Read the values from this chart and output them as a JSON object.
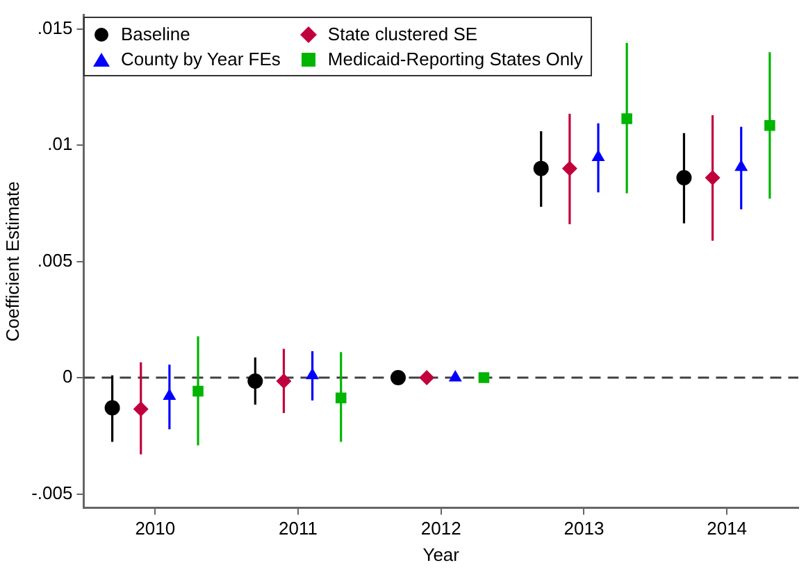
{
  "chart_data": {
    "type": "scatter",
    "xlabel": "Year",
    "ylabel": "Coefficient Estimate",
    "xlim": [
      2009.5,
      2014.5
    ],
    "xticks": [
      2010,
      2011,
      2012,
      2013,
      2014
    ],
    "ylim": [
      -0.0056,
      0.0156
    ],
    "yticks": [
      {
        "value": -0.005,
        "label": "-.005"
      },
      0,
      {
        "value": 0.005,
        "label": ".005"
      },
      {
        "value": 0.01,
        "label": ".01"
      },
      {
        "value": 0.015,
        "label": ".015"
      }
    ],
    "grid": false,
    "legend": "top left",
    "ref_lines": [
      {
        "axis": "y",
        "value": 0,
        "color": "#404040",
        "line_style": "dashed"
      }
    ],
    "series": [
      {
        "name": "Baseline",
        "color": "#000000",
        "marker": "circle",
        "x": [
          2009.7,
          2010.7,
          2011.7,
          2012.7,
          2013.7
        ],
        "values": [
          -0.0013,
          -0.00015,
          0,
          0.009,
          0.0086
        ],
        "errors": [
          [
            -0.00276,
            0.0001
          ],
          [
            -0.00116,
            0.00087
          ],
          null,
          [
            0.00735,
            0.0106
          ],
          [
            0.00664,
            0.01052
          ]
        ]
      },
      {
        "name": "State clustered SE",
        "color": "#c0003c",
        "marker": "diamond",
        "x": [
          2009.9,
          2010.9,
          2011.9,
          2012.9,
          2013.9
        ],
        "values": [
          -0.00135,
          -0.00015,
          0,
          0.009,
          0.0086
        ],
        "errors": [
          [
            -0.0033,
            0.00066
          ],
          [
            -0.00152,
            0.00124
          ],
          null,
          [
            0.0066,
            0.01135
          ],
          [
            0.00589,
            0.01129
          ]
        ]
      },
      {
        "name": "County by Year FEs",
        "color": "#0000ff",
        "marker": "triangle",
        "x": [
          2010.1,
          2011.1,
          2012.1,
          2013.1,
          2014.1
        ],
        "values": [
          -0.00079,
          0.0001,
          0,
          0.00948,
          0.00906
        ],
        "errors": [
          [
            -0.00222,
            0.00056
          ],
          [
            -0.00098,
            0.00114
          ],
          null,
          [
            0.00797,
            0.01094
          ],
          [
            0.00724,
            0.01079
          ]
        ]
      },
      {
        "name": "Medicaid-Reporting States Only",
        "color": "#00b400",
        "marker": "square",
        "x": [
          2010.3,
          2011.3,
          2012.3,
          2013.3,
          2014.3
        ],
        "values": [
          -0.00058,
          -0.00087,
          0,
          0.01114,
          0.01085
        ],
        "errors": [
          [
            -0.00291,
            0.00178
          ],
          [
            -0.00276,
            0.0011
          ],
          null,
          [
            0.00793,
            0.0144
          ],
          [
            0.0077,
            0.014
          ]
        ]
      }
    ]
  }
}
